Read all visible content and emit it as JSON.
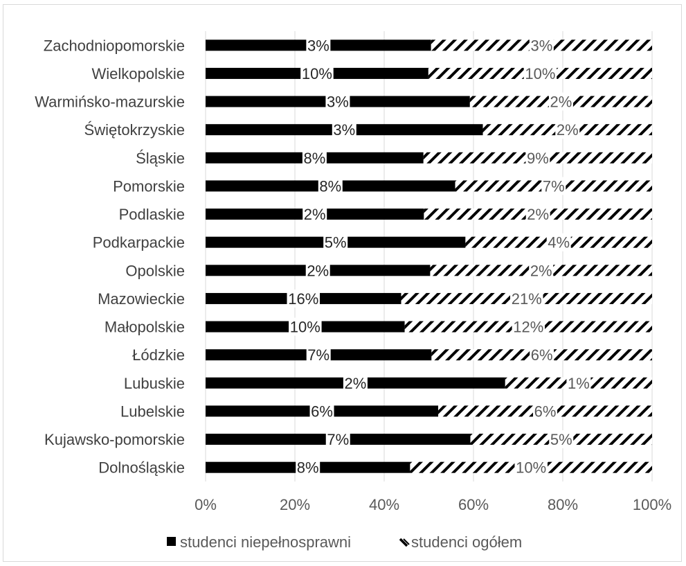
{
  "chart_data": {
    "type": "bar",
    "orientation": "horizontal",
    "stacked": "percent",
    "title": "",
    "xlabel": "",
    "ylabel": "",
    "xlim": [
      0,
      100
    ],
    "x_ticks": [
      "0%",
      "20%",
      "40%",
      "60%",
      "80%",
      "100%"
    ],
    "grid": "vertical",
    "legend_position": "bottom",
    "categories": [
      "Zachodniopomorskie",
      "Wielkopolskie",
      "Warmińsko-mazurskie",
      "Świętokrzyskie",
      "Śląskie",
      "Pomorskie",
      "Podlaskie",
      "Podkarpackie",
      "Opolskie",
      "Mazowieckie",
      "Małopolskie",
      "Łódzkie",
      "Lubuskie",
      "Lubelskie",
      "Kujawsko-pomorskie",
      "Dolnośląskie"
    ],
    "series": [
      {
        "name": "studenci niepełnosprawni",
        "color": "#000000",
        "pattern": "solid",
        "values": [
          3,
          10,
          3,
          3,
          8,
          8,
          2,
          5,
          2,
          16,
          10,
          7,
          2,
          6,
          7,
          8
        ],
        "labels": [
          "3%",
          "10%",
          "3%",
          "3%",
          "8%",
          "8%",
          "2%",
          "5%",
          "2%",
          "16%",
          "10%",
          "7%",
          "2%",
          "6%",
          "7%",
          "8%"
        ],
        "share_percent": [
          50.5,
          49.9,
          59.2,
          62.1,
          48.8,
          55.9,
          48.9,
          58.2,
          50.3,
          43.8,
          44.6,
          50.6,
          67.1,
          52.1,
          59.3,
          45.8
        ]
      },
      {
        "name": "studenci ogółem",
        "color": "#000000",
        "pattern": "diagonal-hatch",
        "values": [
          3,
          10,
          2,
          2,
          9,
          7,
          2,
          4,
          2,
          21,
          12,
          6,
          1,
          6,
          5,
          10
        ],
        "labels": [
          "3%",
          "10%",
          "2%",
          "2%",
          "9%",
          "7%",
          "2%",
          "4%",
          "2%",
          "21%",
          "12%",
          "6%",
          "1%",
          "6%",
          "5%",
          "10%"
        ],
        "share_percent": [
          49.5,
          50.1,
          40.8,
          37.9,
          51.2,
          44.1,
          51.1,
          41.8,
          49.7,
          56.2,
          55.4,
          49.4,
          32.9,
          47.9,
          40.7,
          54.2
        ]
      }
    ]
  }
}
